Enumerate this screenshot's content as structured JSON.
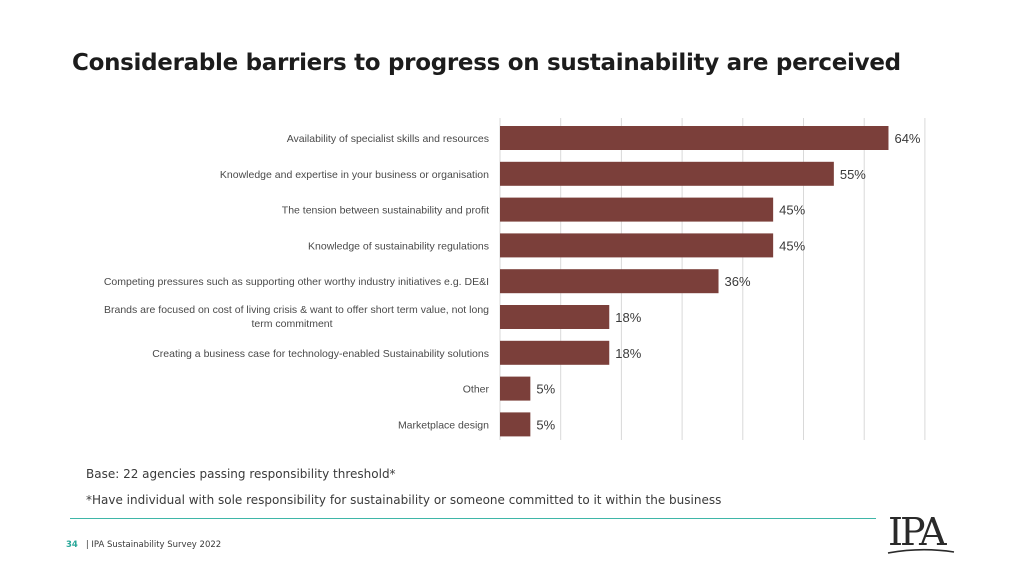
{
  "page": {
    "title": "Considerable barriers to progress on sustainability are perceived",
    "base_note": "Base: 22 agencies passing responsibility threshold*",
    "footnote": "*Have individual with sole responsibility for sustainability or someone committed to it within the business",
    "page_number": "34",
    "footer_text": "| IPA Sustainability Survey 2022",
    "logo_text": "IPA"
  },
  "colors": {
    "bar": "#7b3f3a",
    "grid": "#d9d9d9",
    "accent_line": "#3fb6a8"
  },
  "chart_data": {
    "type": "bar",
    "orientation": "horizontal",
    "title": "Considerable barriers to progress on sustainability are perceived",
    "xlabel": "",
    "ylabel": "",
    "xlim": [
      0,
      70
    ],
    "grid": true,
    "value_suffix": "%",
    "categories": [
      "Availability of specialist skills and resources",
      "Knowledge and expertise in your business or organisation",
      "The tension between sustainability and profit",
      "Knowledge of sustainability regulations",
      "Competing pressures such as supporting other worthy industry initiatives e.g. DE&I",
      "Brands are focused on cost of living crisis & want to offer short term value, not long term commitment",
      "Creating a business case for technology-enabled Sustainability solutions",
      "Other",
      "Marketplace design"
    ],
    "category_lines": [
      [
        "Availability of specialist skills and resources"
      ],
      [
        "Knowledge and expertise in your business or organisation"
      ],
      [
        "The tension between sustainability and profit"
      ],
      [
        "Knowledge of sustainability regulations"
      ],
      [
        "Competing pressures such as supporting other worthy industry initiatives e.g. DE&I"
      ],
      [
        "Brands are focused on cost of living crisis & want to offer short term value, not long",
        "term commitment"
      ],
      [
        "Creating a business case for technology-enabled Sustainability solutions"
      ],
      [
        "Other"
      ],
      [
        "Marketplace design"
      ]
    ],
    "values": [
      64,
      55,
      45,
      45,
      36,
      18,
      18,
      5,
      5
    ]
  }
}
